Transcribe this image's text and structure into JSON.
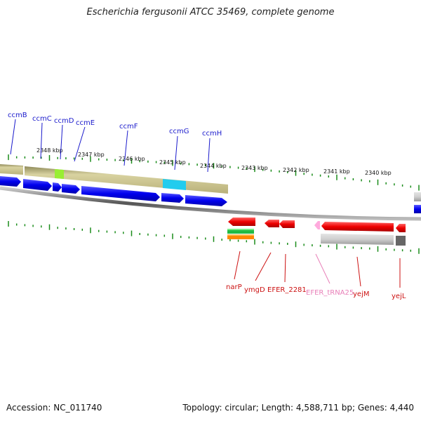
{
  "title": "Escherichia fergusonii ATCC 35469, complete genome",
  "accession_label": "Accession: NC_011740",
  "summary_label": "Topology: circular; Length: 4,588,711 bp; Genes: 4,440",
  "kbp_ticks": [
    "2348 kbp",
    "2347 kbp",
    "2346 kbp",
    "2345 kbp",
    "2344 kbp",
    "2343 kbp",
    "2342 kbp",
    "2341 kbp",
    "2340 kbp"
  ],
  "top_genes": [
    "ccmB",
    "ccmC",
    "ccmD",
    "ccmE",
    "ccmF",
    "ccmG",
    "ccmH"
  ],
  "bottom_genes": [
    "narP",
    "ymgD",
    "EFER_2281",
    "EFER_tRNA25",
    "yejM",
    "yejL"
  ],
  "colors": {
    "forward_gene": "#0000ee",
    "reverse_gene": "#ee0000",
    "trna": "#ff88cc",
    "top_label": "#1a1acc",
    "bottom_label": "#cc1111",
    "trna_label": "#e87fb8",
    "tick": "#1a8c1a",
    "cds_band": "#c8c08a",
    "backbone": "#888888"
  }
}
